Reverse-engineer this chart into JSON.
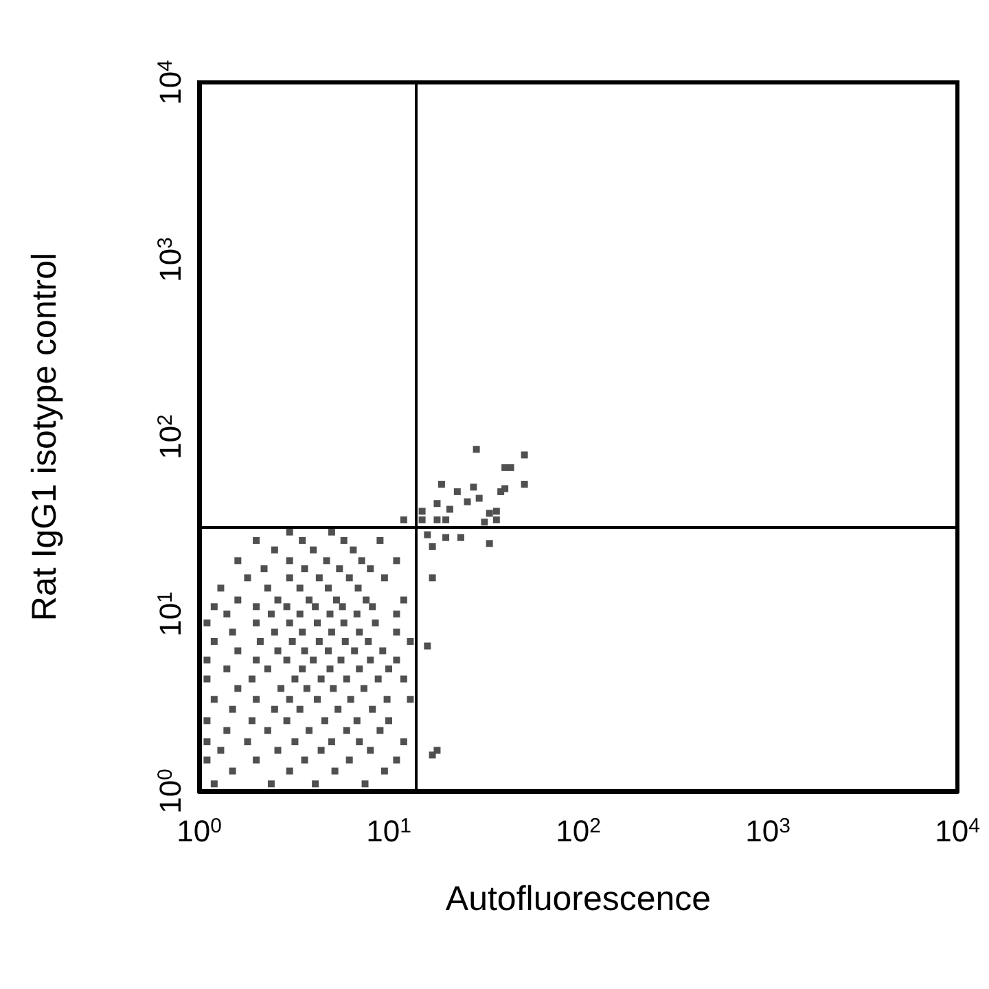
{
  "chart_data": {
    "type": "scatter",
    "xlabel": "Autofluorescence",
    "ylabel": "Rat IgG1 isotype control",
    "color": "#505050",
    "marker": "square",
    "log": "xy",
    "xlim": [
      1,
      10000
    ],
    "ylim": [
      1,
      10000
    ],
    "xticks": [
      {
        "value": 1,
        "label": "10$^{0}$"
      },
      {
        "value": 10,
        "label": "10$^{1}$"
      },
      {
        "value": 100,
        "label": "10$^{2}$"
      },
      {
        "value": 1000,
        "label": "10$^{3}$"
      },
      {
        "value": 10000,
        "label": "10$^{4}$"
      }
    ],
    "yticks": [
      {
        "value": 1,
        "label": "10$^{0}$"
      },
      {
        "value": 10,
        "label": "10$^{1}$"
      },
      {
        "value": 100,
        "label": "10$^{2}$"
      },
      {
        "value": 1000,
        "label": "10$^{3}$"
      },
      {
        "value": 10000,
        "label": "10$^{4}$"
      }
    ],
    "ref_lines": [
      {
        "axis": "x",
        "value": 14,
        "color": "#000000"
      },
      {
        "axis": "y",
        "value": 31,
        "color": "#000000"
      }
    ],
    "x": [
      1.2,
      2.4,
      4.1,
      7.5,
      1.5,
      3.0,
      5.2,
      9.5,
      1.1,
      2.0,
      3.6,
      6.2,
      11,
      1.3,
      2.6,
      4.4,
      8.0,
      1.1,
      1.8,
      3.2,
      5.0,
      7.0,
      12,
      1.4,
      2.3,
      3.8,
      6.0,
      9.0,
      1.1,
      1.9,
      2.9,
      4.6,
      6.8,
      10,
      1.5,
      2.5,
      3.4,
      5.4,
      8.2,
      1.2,
      2.0,
      3.0,
      4.2,
      6.3,
      9.8,
      13,
      1.6,
      2.7,
      3.7,
      5.1,
      7.4,
      1.1,
      1.9,
      3.2,
      4.4,
      6.0,
      8.8,
      12,
      1.4,
      2.3,
      3.5,
      4.9,
      7.0,
      10,
      1.1,
      2.0,
      2.9,
      4.0,
      5.6,
      8.0,
      11,
      1.6,
      2.6,
      3.6,
      4.8,
      6.6,
      9.3,
      1.2,
      2.1,
      3.1,
      4.3,
      5.9,
      7.8,
      13,
      1.5,
      2.5,
      3.5,
      5.0,
      7.0,
      11,
      1.1,
      2.0,
      3.0,
      4.2,
      5.8,
      8.5,
      1.4,
      2.4,
      3.4,
      4.9,
      6.8,
      11,
      1.2,
      2.0,
      2.9,
      4.1,
      5.7,
      8.2,
      1.6,
      2.6,
      3.8,
      5.3,
      7.6,
      12,
      1.3,
      2.3,
      3.4,
      4.8,
      6.9,
      1.8,
      3.0,
      4.3,
      6.2,
      9.5,
      2.2,
      3.6,
      5.5,
      8.0,
      1.6,
      3.0,
      4.7,
      7.2,
      11,
      2.5,
      4.0,
      6.5,
      2.0,
      3.5,
      5.8,
      9.0,
      3.0,
      5.0,
      29,
      52,
      41,
      44,
      19,
      28,
      23,
      41,
      39,
      52,
      26,
      30,
      18,
      21,
      15,
      34,
      37,
      18,
      20,
      15,
      37,
      32,
      12,
      16,
      20,
      24,
      34,
      17,
      16,
      17,
      18,
      17
    ],
    "values": [
      1.1,
      1.1,
      1.1,
      1.1,
      1.3,
      1.3,
      1.3,
      1.3,
      1.5,
      1.5,
      1.5,
      1.5,
      1.5,
      1.7,
      1.7,
      1.7,
      1.7,
      1.9,
      1.9,
      1.9,
      1.9,
      1.9,
      1.9,
      2.2,
      2.2,
      2.2,
      2.2,
      2.2,
      2.5,
      2.5,
      2.5,
      2.5,
      2.5,
      2.5,
      2.9,
      2.9,
      2.9,
      2.9,
      2.9,
      3.3,
      3.3,
      3.3,
      3.3,
      3.3,
      3.3,
      3.3,
      3.8,
      3.8,
      3.8,
      3.8,
      3.8,
      4.3,
      4.3,
      4.3,
      4.3,
      4.3,
      4.3,
      4.3,
      4.9,
      4.9,
      4.9,
      4.9,
      4.9,
      4.9,
      5.5,
      5.5,
      5.5,
      5.5,
      5.5,
      5.5,
      5.5,
      6.2,
      6.2,
      6.2,
      6.2,
      6.2,
      6.2,
      7.0,
      7.0,
      7.0,
      7.0,
      7.0,
      7.0,
      7.0,
      7.9,
      7.9,
      7.9,
      7.9,
      7.9,
      7.9,
      8.9,
      8.9,
      8.9,
      8.9,
      8.9,
      8.9,
      10,
      10,
      10,
      10,
      10,
      10,
      11,
      11,
      11,
      11,
      11,
      11,
      12,
      12,
      12,
      12,
      12,
      12,
      14,
      14,
      14,
      14,
      14,
      16,
      16,
      16,
      16,
      16,
      18,
      18,
      18,
      18,
      20,
      20,
      20,
      20,
      20,
      23,
      23,
      23,
      26,
      26,
      26,
      26,
      29,
      29,
      85,
      79,
      67,
      67,
      54,
      52,
      49,
      51,
      49,
      54,
      43,
      45,
      42,
      39,
      38,
      37,
      38,
      34,
      34,
      34,
      34,
      33,
      34,
      28,
      27,
      27,
      25,
      24,
      6.6,
      16,
      1.7,
      1.6
    ]
  }
}
